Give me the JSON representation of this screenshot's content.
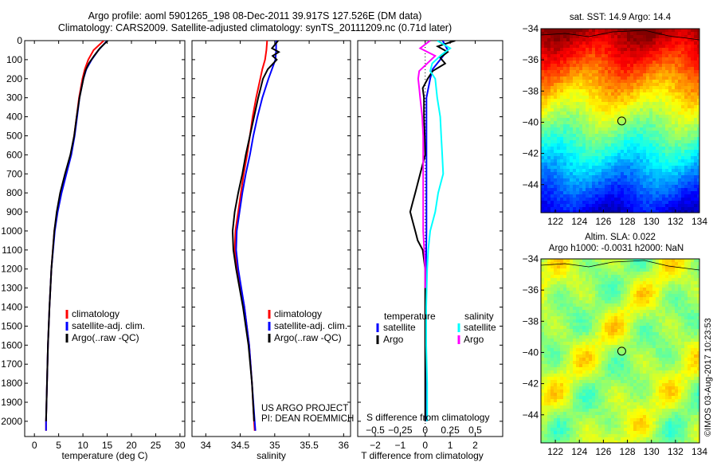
{
  "title_line1": "Argo profile: aoml 5901265_198 08-Dec-2011 39.917S 127.526E (DM data)",
  "title_line2": "Climatology: CARS2009. Satellite-adjusted climatology: synTS_20111209.nc (0.71d later)",
  "timestamp": "©IMOS 03-Aug-2017 10:23:53",
  "colors": {
    "climatology": "#ff0000",
    "satellite": "#0000ff",
    "argo": "#000000",
    "sal_satellite": "#00ffff",
    "sal_argo": "#ff00ff"
  },
  "chart_data": [
    {
      "type": "line",
      "xlabel": "temperature (deg C)",
      "xlim": [
        -2,
        31
      ],
      "ylim": [
        2080,
        0
      ],
      "xticks": [
        0,
        5,
        10,
        15,
        20,
        25,
        30
      ],
      "yticks": [
        0,
        100,
        200,
        300,
        400,
        500,
        600,
        700,
        800,
        900,
        1000,
        1100,
        1200,
        1300,
        1400,
        1500,
        1600,
        1700,
        1800,
        1900,
        2000
      ],
      "legend": [
        "climatology",
        "satellite-adj. clim.",
        "Argo(..raw -QC)"
      ],
      "series": [
        {
          "name": "climatology",
          "color": "#ff0000",
          "depth": [
            0,
            50,
            100,
            150,
            200,
            300,
            400,
            500,
            600,
            700,
            800,
            900,
            1000,
            1200,
            1400,
            1600,
            1800,
            2000,
            2050
          ],
          "values": [
            14.3,
            12.2,
            11.1,
            10.4,
            9.9,
            9.2,
            8.7,
            8.2,
            7.5,
            6.5,
            5.5,
            4.7,
            4.1,
            3.5,
            3.1,
            2.8,
            2.6,
            2.4,
            2.4
          ]
        },
        {
          "name": "satellite-adj. clim.",
          "color": "#0000ff",
          "depth": [
            0,
            50,
            100,
            150,
            200,
            300,
            400,
            500,
            600,
            700,
            800,
            900,
            1000,
            1200,
            1400,
            1600,
            1800,
            2000,
            2050
          ],
          "values": [
            15.0,
            13.2,
            11.8,
            10.7,
            10.1,
            9.3,
            8.8,
            8.3,
            7.6,
            6.6,
            5.6,
            4.8,
            4.2,
            3.5,
            3.1,
            2.8,
            2.6,
            2.4,
            2.4
          ]
        },
        {
          "name": "Argo(..raw -QC)",
          "color": "#000000",
          "depth": [
            0,
            40,
            80,
            120,
            160,
            200,
            300,
            400,
            500,
            600,
            700,
            800,
            900,
            1000,
            1200,
            1400,
            1600,
            1800,
            2000
          ],
          "values": [
            15.1,
            13.5,
            12.3,
            11.2,
            10.5,
            10.1,
            9.3,
            8.7,
            8.2,
            7.4,
            6.3,
            5.3,
            4.6,
            4.1,
            3.5,
            3.1,
            2.8,
            2.6,
            2.4
          ]
        }
      ]
    },
    {
      "type": "line",
      "xlabel": "salinity",
      "xlim": [
        33.8,
        36.1
      ],
      "ylim": [
        2080,
        0
      ],
      "xticks": [
        34,
        34.5,
        35,
        35.5,
        36
      ],
      "legend": [
        "climatology",
        "satellite-adj. clim.",
        "Argo(..raw -QC)"
      ],
      "annotation": [
        "US ARGO PROJECT",
        "PI: DEAN ROEMMICH"
      ],
      "series": [
        {
          "name": "climatology",
          "color": "#ff0000",
          "depth": [
            0,
            50,
            100,
            150,
            200,
            300,
            400,
            500,
            600,
            700,
            800,
            900,
            1000,
            1100,
            1200,
            1400,
            1600,
            1800,
            2000,
            2050
          ],
          "values": [
            34.89,
            34.88,
            34.86,
            34.82,
            34.79,
            34.73,
            34.68,
            34.64,
            34.6,
            34.55,
            34.51,
            34.47,
            34.43,
            34.42,
            34.46,
            34.56,
            34.63,
            34.67,
            34.7,
            34.71
          ]
        },
        {
          "name": "satellite-adj. clim.",
          "color": "#0000ff",
          "depth": [
            0,
            50,
            100,
            150,
            200,
            300,
            400,
            500,
            600,
            700,
            800,
            900,
            1000,
            1100,
            1200,
            1400,
            1600,
            1800,
            2000,
            2050
          ],
          "values": [
            35.02,
            35.02,
            35.01,
            34.96,
            34.91,
            34.82,
            34.75,
            34.69,
            34.64,
            34.58,
            34.53,
            34.49,
            34.45,
            34.44,
            34.47,
            34.56,
            34.63,
            34.67,
            34.71,
            34.72
          ]
        },
        {
          "name": "Argo(..raw -QC)",
          "color": "#000000",
          "depth": [
            0,
            40,
            60,
            80,
            100,
            150,
            200,
            300,
            400,
            500,
            600,
            700,
            800,
            900,
            1000,
            1100,
            1200,
            1400,
            1600,
            1800,
            2000
          ],
          "values": [
            35.05,
            34.96,
            35.06,
            34.97,
            35.03,
            34.9,
            34.83,
            34.76,
            34.7,
            34.64,
            34.58,
            34.53,
            34.47,
            34.42,
            34.39,
            34.4,
            34.44,
            34.54,
            34.62,
            34.67,
            34.7
          ]
        }
      ]
    },
    {
      "type": "line",
      "xlabel": "T difference from climatology",
      "xlabel2": "S difference from climatology",
      "xlim": [
        -2.7,
        3.1
      ],
      "ylim": [
        2080,
        0
      ],
      "xticks": [
        -2,
        -1,
        0,
        1,
        2
      ],
      "xticks2": [
        -0.5,
        -0.25,
        0,
        0.25,
        0.5
      ],
      "legend_temperature": {
        "header": "temperature",
        "items": [
          "satellite",
          "Argo"
        ]
      },
      "legend_salinity": {
        "header": "salinity",
        "items": [
          "satellite",
          "Argo"
        ]
      },
      "series": [
        {
          "name": "temperature satellite",
          "color": "#0000ff",
          "depth": [
            0,
            50,
            100,
            150,
            200,
            300,
            400,
            500,
            600,
            700,
            800,
            900,
            1000,
            1200,
            1400,
            1600,
            1800,
            2000
          ],
          "values": [
            0.7,
            0.9,
            0.6,
            0.3,
            0.2,
            0.05,
            0.05,
            0.05,
            0.05,
            0.05,
            0.05,
            0.05,
            0.05,
            0.03,
            0.03,
            0.02,
            0.02,
            0.02
          ]
        },
        {
          "name": "temperature Argo",
          "color": "#000000",
          "depth": [
            0,
            30,
            60,
            90,
            120,
            160,
            200,
            250,
            300,
            400,
            500,
            600,
            700,
            750,
            800,
            850,
            900,
            950,
            1000,
            1050,
            1100,
            1200,
            1400,
            1600,
            1800,
            2000
          ],
          "values": [
            1.2,
            0.5,
            0.9,
            0.6,
            0.8,
            0.3,
            0.1,
            -0.1,
            -0.05,
            -0.05,
            -0.02,
            0.0,
            -0.2,
            -0.3,
            -0.4,
            -0.5,
            -0.6,
            -0.5,
            -0.4,
            -0.3,
            -0.1,
            0.0,
            0.0,
            0.0,
            0.0,
            0.0
          ]
        },
        {
          "name": "salinity satellite",
          "color": "#00ffff",
          "depth": [
            0,
            40,
            80,
            120,
            160,
            200,
            300,
            400,
            500,
            600,
            700,
            800,
            900,
            1000,
            1100,
            1200,
            1400,
            1600,
            1800,
            2000
          ],
          "values": [
            0.12,
            0.25,
            0.15,
            0.07,
            0.05,
            0.1,
            0.12,
            0.15,
            0.16,
            0.17,
            0.18,
            0.13,
            0.1,
            0.05,
            0.03,
            0.02,
            0.01,
            0.01,
            0.02,
            0.02
          ]
        },
        {
          "name": "salinity Argo",
          "color": "#ff00ff",
          "depth": [
            0,
            40,
            80,
            120,
            160,
            200,
            250,
            300,
            400,
            500,
            600,
            700,
            800,
            900,
            1000,
            1100,
            1200,
            1300
          ],
          "values": [
            0.05,
            -0.05,
            0.1,
            0.02,
            -0.06,
            -0.07,
            -0.06,
            -0.05,
            -0.03,
            -0.02,
            -0.02,
            -0.02,
            -0.02,
            -0.02,
            -0.02,
            -0.01,
            0.0,
            0.0
          ]
        }
      ]
    },
    {
      "type": "heatmap",
      "title": "sat. SST: 14.9 Argo: 14.4",
      "xlim": [
        120.8,
        134
      ],
      "ylim": [
        -45.8,
        -34
      ],
      "xticks": [
        122,
        124,
        126,
        128,
        130,
        132,
        134
      ],
      "yticks": [
        -34,
        -36,
        -38,
        -40,
        -42,
        -44
      ],
      "marker": {
        "lon": 127.526,
        "lat": -39.917
      },
      "colormap": "jet"
    },
    {
      "type": "heatmap",
      "title_lines": [
        "Altim. SLA: 0.022",
        "Argo h1000: -0.0031 h2000: NaN"
      ],
      "xlim": [
        120.8,
        134
      ],
      "ylim": [
        -45.8,
        -34
      ],
      "xticks": [
        122,
        124,
        126,
        128,
        130,
        132,
        134
      ],
      "yticks": [
        -34,
        -36,
        -38,
        -40,
        -42,
        -44
      ],
      "marker": {
        "lon": 127.526,
        "lat": -39.917
      },
      "colormap": "jet"
    }
  ]
}
